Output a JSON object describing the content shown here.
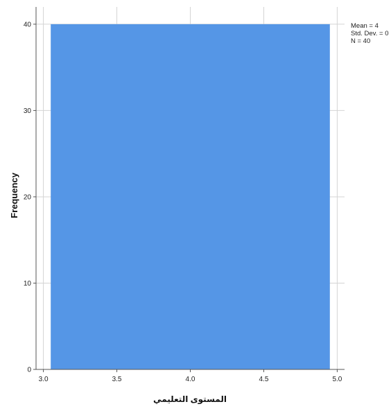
{
  "chart_data": {
    "type": "bar",
    "bins": [
      {
        "x0": 3.05,
        "x1": 4.95,
        "frequency": 40
      }
    ],
    "xlim": [
      2.95,
      5.05
    ],
    "ylim": [
      0,
      42
    ],
    "x_ticks": [
      3.0,
      3.5,
      4.0,
      4.5,
      5.0
    ],
    "x_tick_labels": [
      "3.0",
      "3.5",
      "4.0",
      "4.5",
      "5.0"
    ],
    "y_ticks": [
      0,
      10,
      20,
      30,
      40
    ],
    "y_tick_labels": [
      "0",
      "10",
      "20",
      "30",
      "40"
    ],
    "xlabel": "المستوى التعليمي",
    "ylabel": "Frequency",
    "grid": true,
    "bar_color": "#5596e6",
    "stats": {
      "mean": "Mean = 4",
      "std_dev": "Std. Dev. = 0",
      "n": "N = 40"
    },
    "stats_placement": "top-right"
  }
}
